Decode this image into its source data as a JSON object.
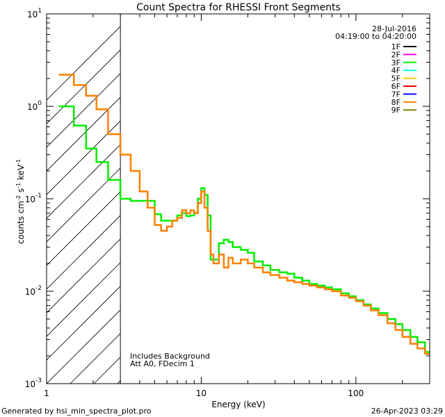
{
  "chart_data": {
    "type": "line",
    "title": "Count Spectra for RHESSI Front Segments",
    "xlabel": "Energy (keV)",
    "ylabel_main": "counts cm",
    "ylabel_sup1": "-2",
    "ylabel_mid": " s",
    "ylabel_sup2": "-1",
    "ylabel_end": " keV",
    "ylabel_sup3": "-1",
    "xscale": "log",
    "yscale": "log",
    "xlim": [
      1,
      300
    ],
    "ylim": [
      0.001,
      10
    ],
    "x_ticks": [
      {
        "value": 1,
        "label": "1"
      },
      {
        "value": 10,
        "label": "10"
      },
      {
        "value": 100,
        "label": "100"
      }
    ],
    "y_ticks": [
      {
        "value": 10,
        "base": "10",
        "exp": "1"
      },
      {
        "value": 1,
        "base": "10",
        "exp": "0"
      },
      {
        "value": 0.1,
        "base": "10",
        "exp": "-1"
      },
      {
        "value": 0.01,
        "base": "10",
        "exp": "-2"
      },
      {
        "value": 0.001,
        "base": "10",
        "exp": "-3"
      }
    ],
    "hatched_region_max_energy": 3,
    "legend": {
      "placement": "top-right",
      "date": "28-Jul-2016",
      "time_range": "04:19:00 to 04:20:00",
      "entries": [
        {
          "label": "1F",
          "color": "#000000"
        },
        {
          "label": "2F",
          "color": "#ff00ff"
        },
        {
          "label": "3F",
          "color": "#00ee00"
        },
        {
          "label": "4F",
          "color": "#00ffff"
        },
        {
          "label": "5F",
          "color": "#ffcc00"
        },
        {
          "label": "6F",
          "color": "#ee0000"
        },
        {
          "label": "7F",
          "color": "#0000ff"
        },
        {
          "label": "8F",
          "color": "#ff7f00"
        },
        {
          "label": "9F",
          "color": "#808000"
        }
      ]
    },
    "annotations": [
      "Includes Background",
      "Att A0, FDecim 1"
    ],
    "series": [
      {
        "name": "3F",
        "color": "#00ee00",
        "x": [
          1.2,
          1.5,
          1.8,
          2.1,
          2.5,
          3.0,
          3.5,
          4.0,
          4.5,
          5.0,
          5.5,
          6.0,
          6.5,
          7.0,
          7.5,
          8.0,
          8.5,
          9.0,
          9.5,
          10.0,
          10.5,
          11.0,
          11.5,
          12.0,
          13,
          14,
          15,
          16,
          18,
          20,
          22,
          25,
          28,
          32,
          36,
          40,
          45,
          50,
          56,
          63,
          70,
          80,
          90,
          100,
          112,
          125,
          140,
          160,
          180,
          200,
          225,
          250,
          280
        ],
        "y": [
          1.0,
          0.62,
          0.35,
          0.25,
          0.16,
          0.1,
          0.095,
          0.095,
          0.095,
          0.068,
          0.058,
          0.058,
          0.058,
          0.066,
          0.07,
          0.065,
          0.066,
          0.07,
          0.1,
          0.13,
          0.11,
          0.066,
          0.022,
          0.022,
          0.033,
          0.036,
          0.034,
          0.03,
          0.028,
          0.026,
          0.021,
          0.019,
          0.017,
          0.016,
          0.0155,
          0.014,
          0.013,
          0.012,
          0.0115,
          0.011,
          0.0105,
          0.0095,
          0.0088,
          0.008,
          0.0072,
          0.0065,
          0.0058,
          0.005,
          0.0044,
          0.0038,
          0.0032,
          0.0028,
          0.0022
        ]
      },
      {
        "name": "8F",
        "color": "#ff7f00",
        "x": [
          1.2,
          1.5,
          1.8,
          2.1,
          2.5,
          3.0,
          3.5,
          4.0,
          4.5,
          5.0,
          5.5,
          6.0,
          6.5,
          7.0,
          7.5,
          8.0,
          8.5,
          9.0,
          9.5,
          10.0,
          10.5,
          11.0,
          11.5,
          12.0,
          13,
          14,
          15,
          16,
          18,
          20,
          22,
          25,
          28,
          32,
          36,
          40,
          45,
          50,
          56,
          63,
          70,
          80,
          90,
          100,
          112,
          125,
          140,
          160,
          180,
          200,
          225,
          250,
          280
        ],
        "y": [
          2.2,
          1.7,
          1.3,
          0.93,
          0.5,
          0.3,
          0.2,
          0.12,
          0.08,
          0.052,
          0.045,
          0.05,
          0.058,
          0.062,
          0.075,
          0.07,
          0.075,
          0.07,
          0.09,
          0.12,
          0.08,
          0.045,
          0.025,
          0.02,
          0.025,
          0.018,
          0.023,
          0.02,
          0.022,
          0.02,
          0.018,
          0.016,
          0.015,
          0.014,
          0.013,
          0.0125,
          0.012,
          0.0115,
          0.011,
          0.0105,
          0.01,
          0.009,
          0.0085,
          0.0078,
          0.007,
          0.0062,
          0.0055,
          0.0045,
          0.0038,
          0.0032,
          0.0027,
          0.0024,
          0.0021
        ]
      }
    ]
  },
  "footer": {
    "generated_by": "Generated by hsi_min_spectra_plot.pro",
    "timestamp": "26-Apr-2023 03:29"
  }
}
